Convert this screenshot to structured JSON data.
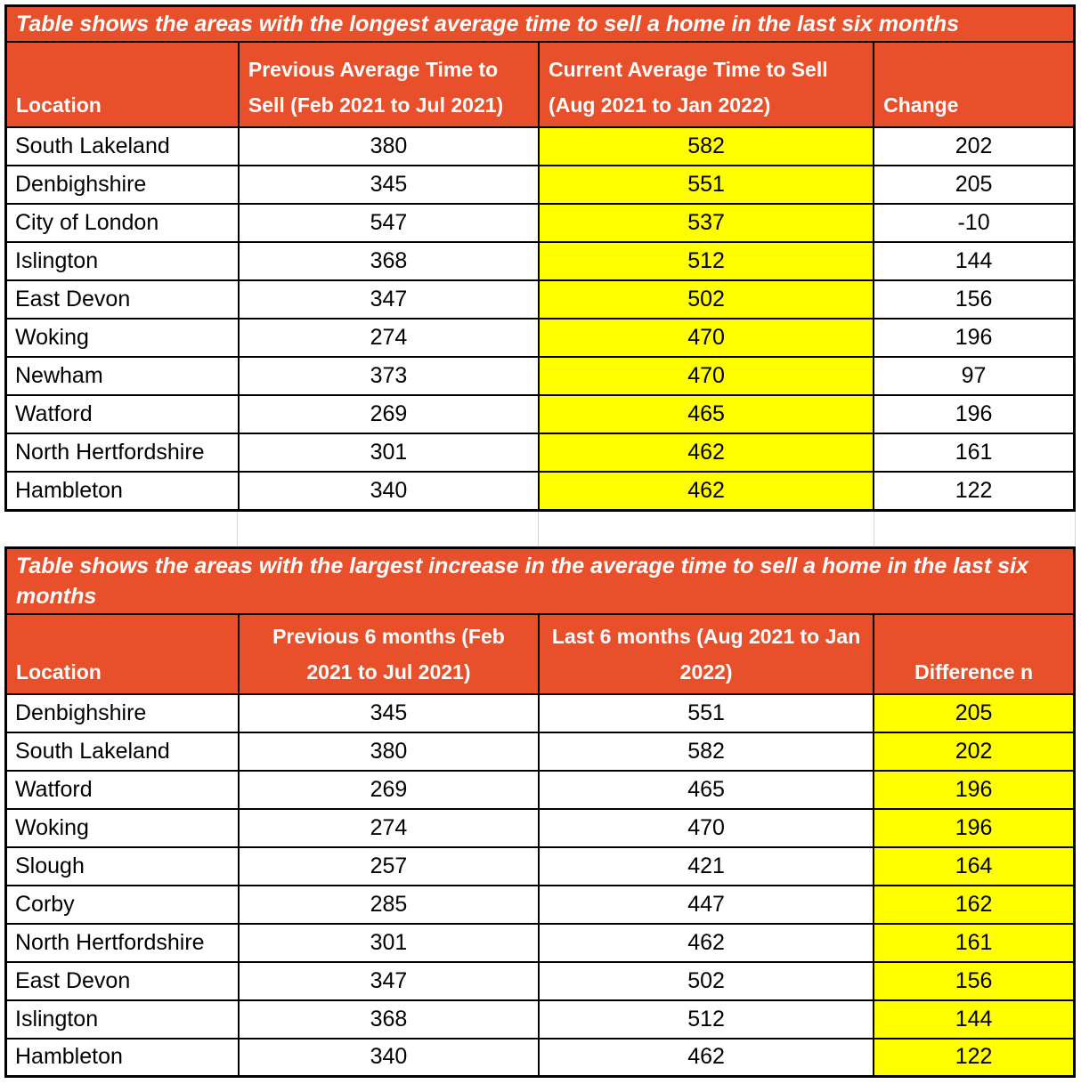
{
  "colors": {
    "banner_bg": "#E8502B",
    "header_bg": "#E8502B",
    "highlight": "#FFFF00",
    "border": "#000000",
    "gap_gridline": "#D6D6D6",
    "header_text": "#FFFFFF",
    "body_text": "#000000"
  },
  "table1": {
    "title": "Table shows the areas with the longest average time to sell a home in the last six months",
    "headers": [
      "Location",
      "Previous Average Time to Sell (Feb 2021 to Jul 2021)",
      "Current Average Time to Sell (Aug 2021 to Jan 2022)",
      "Change"
    ],
    "highlight_column_index": 2,
    "rows": [
      [
        "South Lakeland",
        "380",
        "582",
        "202"
      ],
      [
        "Denbighshire",
        "345",
        "551",
        "205"
      ],
      [
        "City of London",
        "547",
        "537",
        "-10"
      ],
      [
        "Islington",
        "368",
        "512",
        "144"
      ],
      [
        "East Devon",
        "347",
        "502",
        "156"
      ],
      [
        "Woking",
        "274",
        "470",
        "196"
      ],
      [
        "Newham",
        "373",
        "470",
        "97"
      ],
      [
        "Watford",
        "269",
        "465",
        "196"
      ],
      [
        "North Hertfordshire",
        "301",
        "462",
        "161"
      ],
      [
        "Hambleton",
        "340",
        "462",
        "122"
      ]
    ]
  },
  "table2": {
    "title": "Table shows the areas with the largest increase in the average time to sell a home in the last six months",
    "headers": [
      "Location",
      "Previous 6 months (Feb 2021 to Jul 2021)",
      "Last 6 months (Aug 2021 to Jan 2022)",
      "Difference n"
    ],
    "highlight_column_index": 3,
    "rows": [
      [
        "Denbighshire",
        "345",
        "551",
        "205"
      ],
      [
        "South Lakeland",
        "380",
        "582",
        "202"
      ],
      [
        "Watford",
        "269",
        "465",
        "196"
      ],
      [
        "Woking",
        "274",
        "470",
        "196"
      ],
      [
        "Slough",
        "257",
        "421",
        "164"
      ],
      [
        "Corby",
        "285",
        "447",
        "162"
      ],
      [
        "North Hertfordshire",
        "301",
        "462",
        "161"
      ],
      [
        "East Devon",
        "347",
        "502",
        "156"
      ],
      [
        "Islington",
        "368",
        "512",
        "144"
      ],
      [
        "Hambleton",
        "340",
        "462",
        "122"
      ]
    ]
  },
  "layout": {
    "column_widths_pct": [
      21.78,
      28.1,
      31.34,
      18.78
    ]
  }
}
